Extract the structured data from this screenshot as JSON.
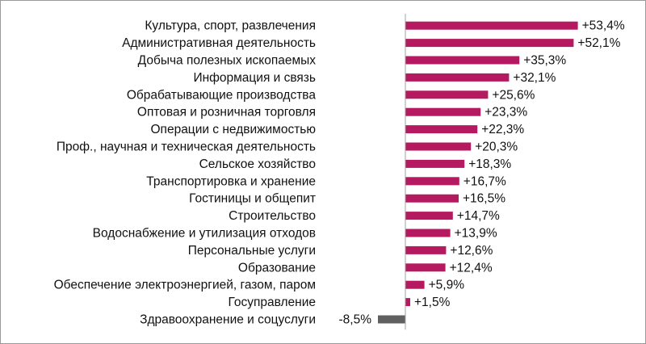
{
  "chart_data": {
    "type": "bar",
    "orientation": "horizontal",
    "title": "",
    "xlabel": "",
    "ylabel": "",
    "grid": false,
    "colors": {
      "positive": "#b5195f",
      "negative": "#606060",
      "axis": "#a0a0a0"
    },
    "xlim": [
      -8.5,
      53.4
    ],
    "categories": [
      "Культура, спорт, развлечения",
      "Административная деятельность",
      "Добыча полезных ископаемых",
      "Информация и связь",
      "Обрабатывающие производства",
      "Оптовая и розничная торговля",
      "Операции с недвижимостью",
      "Проф., научная и техническая деятельность",
      "Сельское хозяйство",
      "Транспортировка и хранение",
      "Гостиницы и общепит",
      "Строительство",
      "Водоснабжение и утилизация отходов",
      "Персональные услуги",
      "Образование",
      "Обеспечение электроэнергией, газом, паром",
      "Госуправление",
      "Здравоохранение и соцуслуги"
    ],
    "values": [
      53.4,
      52.1,
      35.3,
      32.1,
      25.6,
      23.3,
      22.3,
      20.3,
      18.3,
      16.7,
      16.5,
      14.7,
      13.9,
      12.6,
      12.4,
      5.9,
      1.5,
      -8.5
    ],
    "value_labels": [
      "+53,4%",
      "+52,1%",
      "+35,3%",
      "+32,1%",
      "+25,6%",
      "+23,3%",
      "+22,3%",
      "+20,3%",
      "+18,3%",
      "+16,7%",
      "+16,5%",
      "+14,7%",
      "+13,9%",
      "+12,6%",
      "+12,4%",
      "+5,9%",
      "+1,5%",
      "-8,5%"
    ]
  }
}
